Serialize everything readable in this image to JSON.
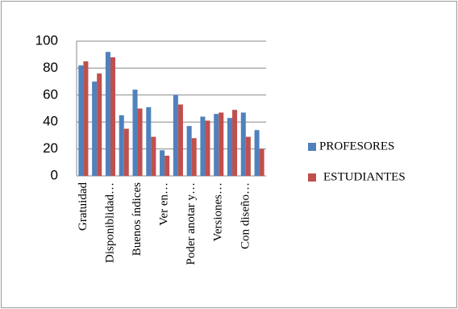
{
  "chart_data": {
    "type": "bar",
    "categories": [
      "Gratuidad",
      null,
      "Disponiblidad…",
      null,
      "Buenos índices",
      null,
      "Ver en…",
      null,
      "Poder anotar y…",
      null,
      "Versiones…",
      null,
      "Con diseño…",
      null
    ],
    "series": [
      {
        "name": "PROFESORES",
        "color": "#4f81bd",
        "values": [
          82,
          70,
          92,
          45,
          64,
          51,
          19,
          60,
          37,
          44,
          46,
          43,
          47,
          34
        ]
      },
      {
        "name": "ESTUDIANTES",
        "color": "#c0504d",
        "values": [
          85,
          76,
          88,
          35,
          50,
          29,
          15,
          53,
          28,
          41,
          47,
          49,
          29,
          20
        ]
      }
    ],
    "ylim": [
      0,
      100
    ],
    "yticks": [
      0,
      20,
      40,
      60,
      80,
      100
    ],
    "grid": true,
    "legend": "right"
  }
}
